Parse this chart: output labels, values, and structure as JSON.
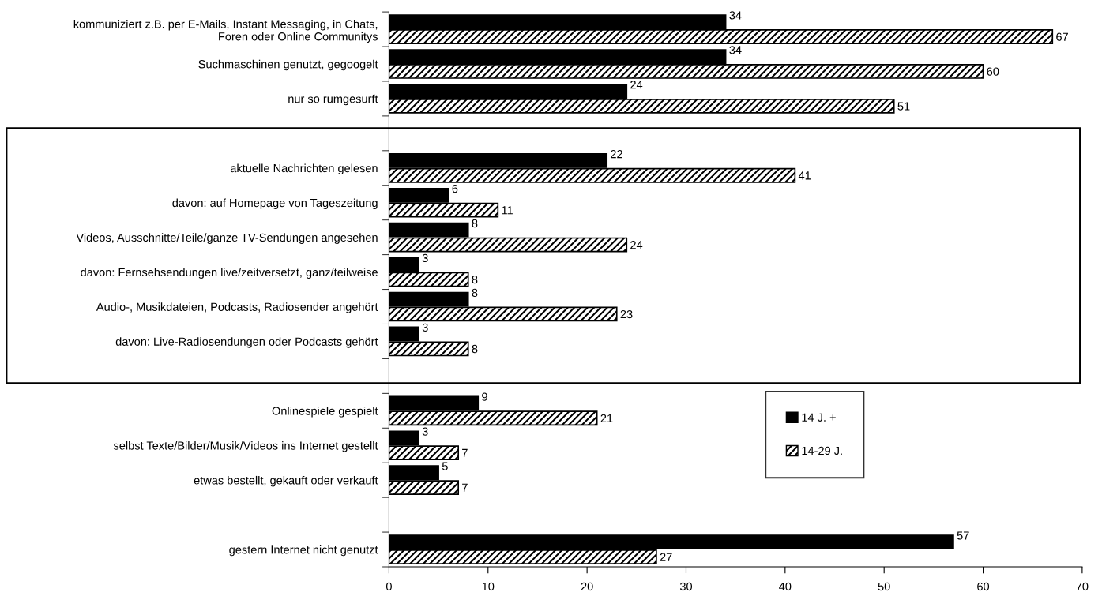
{
  "chart_data": {
    "type": "bar",
    "orientation": "horizontal",
    "categories": [
      "kommuniziert z.B. per E-Mails, Instant Messaging, in Chats,\nForen oder Online Communitys",
      "Suchmaschinen genutzt, gegoogelt",
      "nur so rumgesurft",
      null,
      "aktuelle Nachrichten gelesen",
      "davon: auf Homepage von Tageszeitung",
      "Videos, Ausschnitte/Teile/ganze TV-Sendungen angesehen",
      "davon: Fernsehsendungen live/zeitversetzt, ganz/teilweise",
      "Audio-, Musikdateien, Podcasts, Radiosender angehört",
      "davon: Live-Radiosendungen oder Podcasts gehört",
      null,
      "Onlinespiele gespielt",
      "selbst Texte/Bilder/Musik/Videos ins Internet gestellt",
      "etwas bestellt, gekauft oder verkauft",
      null,
      "gestern Internet nicht genutzt"
    ],
    "series": [
      {
        "name": "14 J. +",
        "color": "#000000",
        "values": [
          34,
          34,
          24,
          null,
          22,
          6,
          8,
          3,
          8,
          3,
          null,
          9,
          3,
          5,
          null,
          57
        ]
      },
      {
        "name": "14-29 J.",
        "color": "#000000",
        "values": [
          67,
          60,
          51,
          null,
          41,
          11,
          24,
          8,
          23,
          8,
          null,
          21,
          7,
          7,
          null,
          27
        ]
      }
    ],
    "xlim": [
      0,
      70
    ],
    "xticks": [
      0,
      10,
      20,
      30,
      40,
      50,
      60,
      70
    ],
    "data_labels": true,
    "grid": false,
    "legend": "right"
  }
}
